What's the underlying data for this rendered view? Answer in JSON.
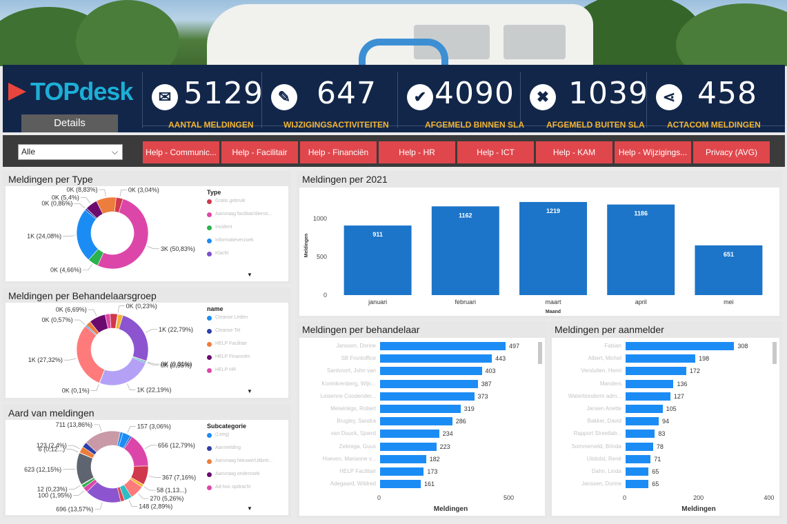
{
  "logo": "TOPdesk",
  "details_label": "Details",
  "kpis": [
    {
      "icon": "envelope-icon",
      "glyph": "✉",
      "value": "5129",
      "label": "AANTAL MELDINGEN"
    },
    {
      "icon": "pencil-icon",
      "glyph": "✎",
      "value": "647",
      "label": "WIJZIGINGSACTIVITEITEN"
    },
    {
      "icon": "check-icon",
      "glyph": "✔",
      "value": "4090",
      "label": "AFGEMELD BINNEN SLA"
    },
    {
      "icon": "x-icon",
      "glyph": "✖",
      "value": "1039",
      "label": "AFGEMELD  BUITEN SLA"
    },
    {
      "icon": "share-icon",
      "glyph": "⋖",
      "value": "458",
      "label": "ACTACOM MELDINGEN"
    }
  ],
  "filter": {
    "selected": "Alle",
    "chevron": "⌵"
  },
  "help_buttons": [
    "Help - Communic...",
    "Help - Facilitair",
    "Help - Financiën",
    "Help - HR",
    "Help - ICT",
    "Help - KAM",
    "Help - Wijzigings...",
    "Privacy (AVG)"
  ],
  "panels": {
    "type": {
      "title": "Meldingen per Type",
      "legend_title": "Type",
      "legend": [
        {
          "label": "Gratis gebruik",
          "color": "#d0384c"
        },
        {
          "label": "Aanvraag facilitair/dienst...",
          "color": "#dd46a9"
        },
        {
          "label": "Incident",
          "color": "#2bb24c"
        },
        {
          "label": "Informatieverzoek",
          "color": "#1c8cf5"
        },
        {
          "label": "Klacht",
          "color": "#7f4fc9"
        }
      ],
      "slices": [
        {
          "value": 50.83,
          "color": "#dd46a9",
          "label": "3K (50,83%)"
        },
        {
          "value": 4.66,
          "color": "#2bb24c",
          "label": "0K (4,66%)"
        },
        {
          "value": 24.08,
          "color": "#1c8cf5",
          "label": "1K (24,08%)"
        },
        {
          "value": 0.86,
          "color": "#2f3fa8",
          "label": "0K (0,86%)"
        },
        {
          "value": 5.4,
          "color": "#6c0b6e",
          "label": "0K (5,4%)"
        },
        {
          "value": 8.83,
          "color": "#ed7d3c",
          "label": "0K (8,83%)"
        },
        {
          "value": 3.04,
          "color": "#d0384c",
          "label": "0K (3,04%)"
        }
      ]
    },
    "groep": {
      "title": "Meldingen per Behandelaarsgroep",
      "legend_title": "name",
      "legend": [
        {
          "label": "Cleanse Leden",
          "color": "#1c8cf5"
        },
        {
          "label": "Cleanse Tel",
          "color": "#2f3fa8"
        },
        {
          "label": "HELP Facilitair",
          "color": "#ed7d3c"
        },
        {
          "label": "HELP Financiën",
          "color": "#6c0b6e"
        },
        {
          "label": "HELP HR",
          "color": "#dd46a9"
        }
      ],
      "slices": [
        {
          "value": 22.79,
          "color": "#8c55cf",
          "label": "1K (22,79%)"
        },
        {
          "value": 0.31,
          "color": "#e0474c",
          "label": "0K (0,31%)"
        },
        {
          "value": 0.55,
          "color": "#2dbdc4",
          "label": "0K (0,55%)"
        },
        {
          "value": 22.19,
          "color": "#b4a1f5",
          "label": "1K (22,19%)"
        },
        {
          "value": 0.1,
          "color": "#aaaaaa",
          "label": "0K (0,1%)"
        },
        {
          "value": 27.32,
          "color": "#ff7a7a",
          "label": "1K (27,32%)"
        },
        {
          "value": 0.57,
          "color": "#1c8cf5",
          "label": "0K (0,57%)"
        },
        {
          "value": 2.0,
          "color": "#ed7d3c",
          "label": ""
        },
        {
          "value": 6.69,
          "color": "#6c0b6e",
          "label": "0K (6,69%)"
        },
        {
          "value": 2.0,
          "color": "#dd46a9",
          "label": ""
        },
        {
          "value": 3.0,
          "color": "#d0384c",
          "label": ""
        },
        {
          "value": 0.23,
          "color": "#2f3fa8",
          "label": "0K (0,23%)"
        },
        {
          "value": 2.0,
          "color": "#f2b431",
          "label": ""
        }
      ]
    },
    "aard": {
      "title": "Aard van meldingen",
      "legend_title": "Subcategorie",
      "legend": [
        {
          "label": "(Leeg)",
          "color": "#1c8cf5"
        },
        {
          "label": "Aanmelding",
          "color": "#2f3fa8"
        },
        {
          "label": "Aanvraag Nieuwe/Uitbrei...",
          "color": "#ed7d3c"
        },
        {
          "label": "Aanvraag onderzoek",
          "color": "#6c0b6e"
        },
        {
          "label": "Ad-hoc opdracht",
          "color": "#dd46a9"
        }
      ],
      "slices": [
        {
          "value": 3.06,
          "color": "#1c8cf5",
          "label": "157 (3,06%)"
        },
        {
          "value": 0.6,
          "color": "#2f3fa8",
          "label": ""
        },
        {
          "value": 12.79,
          "color": "#dd46a9",
          "label": "656 (12,79%)"
        },
        {
          "value": 7.16,
          "color": "#d0384c",
          "label": "367 (7,16%)"
        },
        {
          "value": 1.13,
          "color": "#f2b431",
          "label": "58 (1,13...)"
        },
        {
          "value": 5.26,
          "color": "#ff7a7a",
          "label": "270 (5,26%)"
        },
        {
          "value": 2.89,
          "color": "#2dbdc4",
          "label": "148 (2,89%)"
        },
        {
          "value": 1.5,
          "color": "#e0474c",
          "label": ""
        },
        {
          "value": 13.57,
          "color": "#8c55cf",
          "label": "696 (13,57%)"
        },
        {
          "value": 1.95,
          "color": "#dd46a9",
          "label": "100 (1,95%)"
        },
        {
          "value": 1.2,
          "color": "#2bb24c",
          "label": ""
        },
        {
          "value": 0.23,
          "color": "#f2b431",
          "label": "12 (0,23%)"
        },
        {
          "value": 12.15,
          "color": "#5e6470",
          "label": "623 (12,15%)"
        },
        {
          "value": 0.12,
          "color": "#6c0b6e",
          "label": "6 (0,12...)"
        },
        {
          "value": 2.4,
          "color": "#ed7d3c",
          "label": "123 (2,4%)"
        },
        {
          "value": 2.0,
          "color": "#2f3fa8",
          "label": ""
        },
        {
          "value": 13.86,
          "color": "#c99aa6",
          "label": "711 (13,86%)"
        },
        {
          "value": 1.0,
          "color": "#1c8cf5",
          "label": ""
        }
      ]
    }
  },
  "chart_data": [
    {
      "type": "bar",
      "title": "Meldingen per 2021",
      "categories": [
        "januari",
        "februari",
        "maart",
        "april",
        "mei"
      ],
      "values": [
        911,
        1162,
        1219,
        1186,
        651
      ],
      "xlabel": "Maand",
      "ylabel": "Meldingen",
      "ylim": [
        0,
        1300
      ],
      "yticks": [
        0,
        500,
        1000
      ],
      "color": "#1c75c9"
    },
    {
      "type": "bar",
      "orientation": "horizontal",
      "title": "Meldingen per behandelaar",
      "categories": [
        "Janssen, Dorine",
        "SB Frontoffice",
        "Santvoort, John van",
        "Koninkrenberg, Wijn...",
        "Leisenne Coodender...",
        "Meiwinkgs, Robert",
        "Brugley, Sandra",
        "van Duuck, Sjoerd",
        "Zebrega, Guus",
        "Hoeven, Marianne v...",
        "HELP Facilitair",
        "Adegaard, Wildred"
      ],
      "values": [
        497,
        443,
        403,
        387,
        373,
        319,
        286,
        234,
        223,
        182,
        173,
        161
      ],
      "xlabel": "Meldingen",
      "xlim": [
        0,
        560
      ],
      "xticks": [
        0,
        500
      ]
    },
    {
      "type": "bar",
      "orientation": "horizontal",
      "title": "Meldingen per aanmelder",
      "categories": [
        "Fabian",
        "Albert, Michel",
        "Versluiten, Henri",
        "Manders",
        "Waterbonderm adm...",
        "Jansen Anette",
        "Bakker, David",
        "Rapport Streetlab...",
        "Sommerveld, Brinda",
        "Uitdolst, René",
        "Dahn, Linda",
        "Janssen, Dorine"
      ],
      "values": [
        308,
        198,
        172,
        136,
        127,
        105,
        94,
        83,
        78,
        71,
        65,
        65
      ],
      "xlabel": "Meldingen",
      "xlim": [
        0,
        415
      ],
      "xticks": [
        0,
        200,
        400
      ]
    }
  ]
}
